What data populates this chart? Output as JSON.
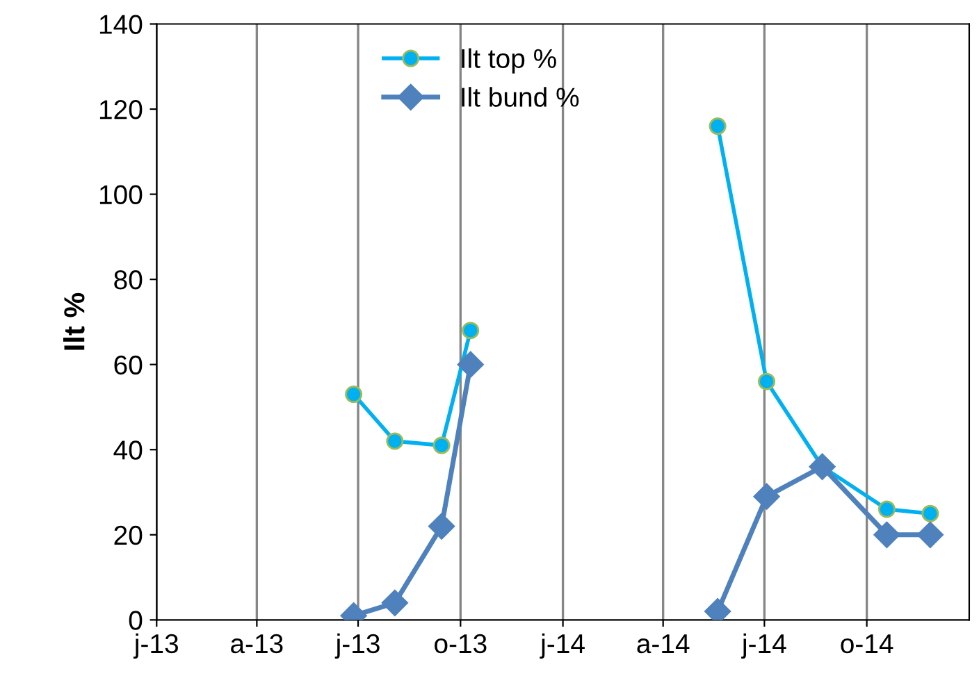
{
  "chart_data": {
    "type": "line",
    "ylabel": "Ilt %",
    "x": [
      "2013-06-27",
      "2013-08-03",
      "2013-09-14",
      "2013-10-10",
      "2014-01-01",
      "2014-05-20",
      "2014-07-03",
      "2014-08-22",
      "2014-10-19",
      "2014-11-27"
    ],
    "series": [
      {
        "name": "Ilt top %",
        "color": "#00b0f0",
        "marker": "circle",
        "values": [
          53,
          42,
          41,
          68,
          null,
          116,
          56,
          36,
          26,
          25
        ]
      },
      {
        "name": "Ilt bund %",
        "color": "#4f81bd",
        "marker": "diamond",
        "values": [
          1,
          4,
          22,
          60,
          null,
          2,
          29,
          36,
          20,
          20
        ]
      }
    ],
    "xlim": [
      "2013-01-01",
      "2015-01-01"
    ],
    "xticks": [
      {
        "value": "2013-01-01",
        "label": "j-13"
      },
      {
        "value": "2013-04-01",
        "label": "a-13"
      },
      {
        "value": "2013-07-01",
        "label": "j-13"
      },
      {
        "value": "2013-10-01",
        "label": "o-13"
      },
      {
        "value": "2014-01-01",
        "label": "j-14"
      },
      {
        "value": "2014-04-01",
        "label": "a-14"
      },
      {
        "value": "2014-07-01",
        "label": "j-14"
      },
      {
        "value": "2014-10-01",
        "label": "o-14"
      }
    ],
    "ylim": [
      0,
      140
    ],
    "yticks": [
      0,
      20,
      40,
      60,
      80,
      100,
      120,
      140
    ],
    "grid": "x",
    "legend": "top",
    "line_style": "solid"
  }
}
